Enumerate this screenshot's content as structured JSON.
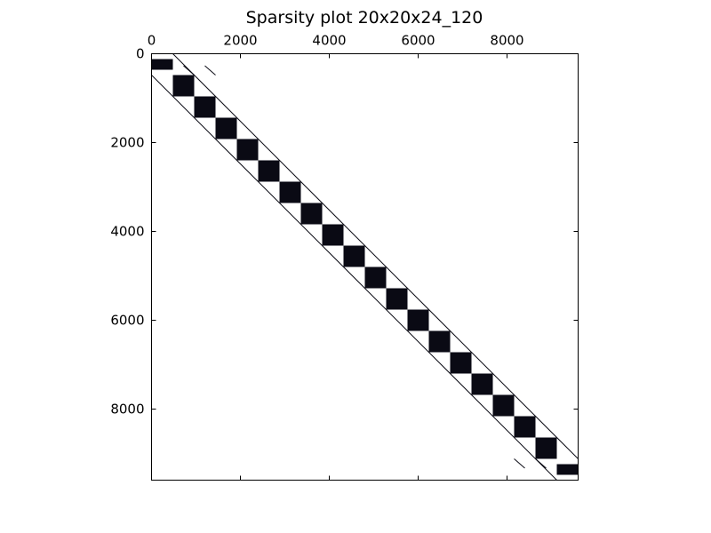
{
  "chart_data": {
    "type": "heatmap",
    "title": "Sparsity plot 20x20x24_120",
    "xlabel": "",
    "ylabel": "",
    "matrix_size": 9600,
    "xlim": [
      0,
      9600
    ],
    "ylim": [
      9600,
      0
    ],
    "x_ticks": [
      0,
      2000,
      4000,
      6000,
      8000
    ],
    "y_ticks": [
      0,
      2000,
      4000,
      6000,
      8000
    ],
    "x_tick_labels": [
      "0",
      "2000",
      "4000",
      "6000",
      "8000"
    ],
    "y_tick_labels": [
      "0",
      "2000",
      "4000",
      "6000",
      "8000"
    ],
    "x_axis_position": "top",
    "grid": false,
    "nonzero_color": "#0a0a14",
    "diagonal_blocks": {
      "count": 20,
      "block_size": 480,
      "first_block_start": 0
    },
    "off_diagonals": [
      {
        "name": "",
        "row_start": 480,
        "col_start": 0,
        "row_end": 9600,
        "col_end": 9120
      },
      {
        "name": "",
        "row_start": 0,
        "col_start": 480,
        "row_end": 9120,
        "col_end": 9600
      }
    ],
    "extra_segments": [
      {
        "row_start": 270,
        "col_start": 720,
        "row_end": 480,
        "col_end": 960
      },
      {
        "row_start": 270,
        "col_start": 1200,
        "row_end": 480,
        "col_end": 1440
      },
      {
        "row_start": 9120,
        "col_start": 8160,
        "row_end": 9330,
        "col_end": 8400
      },
      {
        "row_start": 9120,
        "col_start": 8640,
        "row_end": 9330,
        "col_end": 8880
      }
    ]
  }
}
